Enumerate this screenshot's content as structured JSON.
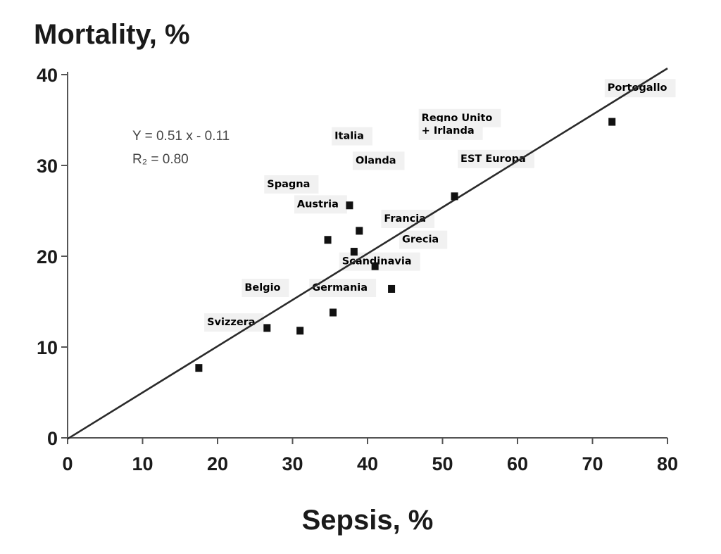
{
  "chart_data": {
    "type": "scatter",
    "title": "",
    "xlabel": "Sepsis, %",
    "ylabel": "Mortality, %",
    "xlim": [
      0,
      80
    ],
    "ylim": [
      0,
      40
    ],
    "x_ticks": [
      0,
      10,
      20,
      30,
      40,
      50,
      60,
      70,
      80
    ],
    "y_ticks": [
      0,
      10,
      20,
      30,
      40
    ],
    "grid": false,
    "trendline": {
      "equation": "Y = 0.51 x - 0.11",
      "r2": "R₂ = 0.80",
      "slope": 0.51,
      "intercept": -0.11,
      "x_range": [
        0,
        80
      ]
    },
    "points": [
      {
        "x": 17.5,
        "y": 7.7
      },
      {
        "x": 26.6,
        "y": 12.1
      },
      {
        "x": 31.0,
        "y": 11.8
      },
      {
        "x": 34.7,
        "y": 21.8
      },
      {
        "x": 35.4,
        "y": 13.8
      },
      {
        "x": 37.6,
        "y": 25.6
      },
      {
        "x": 38.2,
        "y": 20.5
      },
      {
        "x": 38.9,
        "y": 22.8
      },
      {
        "x": 41.0,
        "y": 18.9
      },
      {
        "x": 43.2,
        "y": 16.4
      },
      {
        "x": 51.6,
        "y": 26.6
      },
      {
        "x": 72.6,
        "y": 34.8
      }
    ],
    "annotations": [
      {
        "text": "Portogallo",
        "x": 72.0,
        "y": 38.2
      },
      {
        "text": "Regno Unito",
        "x": 47.2,
        "y": 34.9
      },
      {
        "text": "+ Irlanda",
        "x": 47.2,
        "y": 33.5
      },
      {
        "text": "Italia",
        "x": 35.6,
        "y": 32.9
      },
      {
        "text": "Olanda",
        "x": 38.4,
        "y": 30.2
      },
      {
        "text": "EST Europa",
        "x": 52.4,
        "y": 30.4
      },
      {
        "text": "Spagna",
        "x": 26.6,
        "y": 27.6
      },
      {
        "text": "Austria",
        "x": 30.6,
        "y": 25.4
      },
      {
        "text": "Francia",
        "x": 42.2,
        "y": 23.8
      },
      {
        "text": "Grecia",
        "x": 44.6,
        "y": 21.5
      },
      {
        "text": "Scandinavia",
        "x": 36.6,
        "y": 19.1
      },
      {
        "text": "Belgio",
        "x": 23.6,
        "y": 16.2
      },
      {
        "text": "Germania",
        "x": 32.6,
        "y": 16.2
      },
      {
        "text": "Svizzera",
        "x": 18.6,
        "y": 12.4
      }
    ]
  }
}
